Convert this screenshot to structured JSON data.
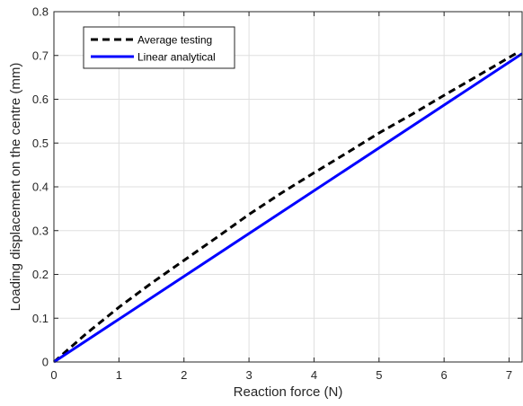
{
  "chart_data": {
    "type": "line",
    "title": "",
    "xlabel": "Reaction force (N)",
    "ylabel": "Loading displacement on the centre (mm)",
    "xlim": [
      0,
      7.2
    ],
    "ylim": [
      0,
      0.8
    ],
    "xticks": [
      0,
      1,
      2,
      3,
      4,
      5,
      6,
      7
    ],
    "yticks": [
      0,
      0.1,
      0.2,
      0.3,
      0.4,
      0.5,
      0.6,
      0.7,
      0.8
    ],
    "grid": true,
    "legend": {
      "placement": "top-left"
    },
    "series": [
      {
        "name": "Average testing",
        "color": "#000000",
        "style": "dashed",
        "x": [
          0,
          0.5,
          1,
          1.5,
          2,
          2.5,
          3,
          3.5,
          4,
          4.5,
          5,
          5.5,
          6,
          6.5,
          7.1
        ],
        "y": [
          0,
          0.065,
          0.125,
          0.18,
          0.232,
          0.284,
          0.337,
          0.386,
          0.432,
          0.477,
          0.523,
          0.565,
          0.609,
          0.652,
          0.704
        ]
      },
      {
        "name": "Linear analytical",
        "color": "#0000ff",
        "style": "solid",
        "x": [
          0,
          7.2
        ],
        "y": [
          0,
          0.704
        ]
      }
    ]
  }
}
